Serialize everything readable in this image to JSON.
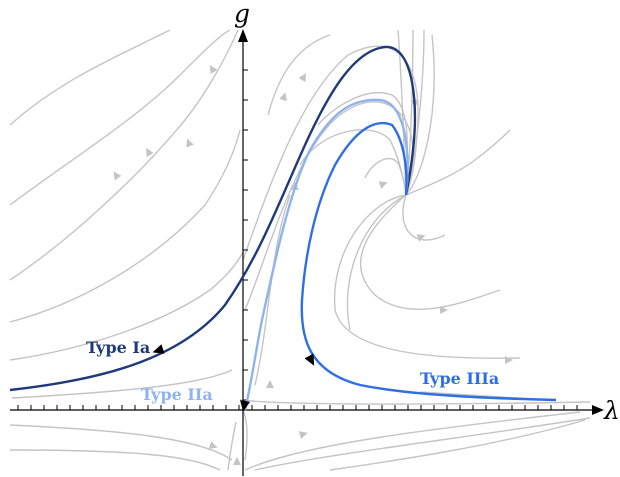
{
  "axes": {
    "x_label": "λ",
    "y_label": "g"
  },
  "colors": {
    "flow": "#c4c4c4",
    "type_ia": "#1f3a7a",
    "type_iia": "#8fb3ee",
    "type_iiia": "#2f6ee3",
    "axis": "#000000"
  },
  "curves": [
    {
      "name": "type-ia",
      "label": "Type Ia",
      "color_key": "type_ia"
    },
    {
      "name": "type-iia",
      "label": "Type IIa",
      "color_key": "type_iia"
    },
    {
      "name": "type-iiia",
      "label": "Type IIIa",
      "color_key": "type_iiia"
    }
  ]
}
